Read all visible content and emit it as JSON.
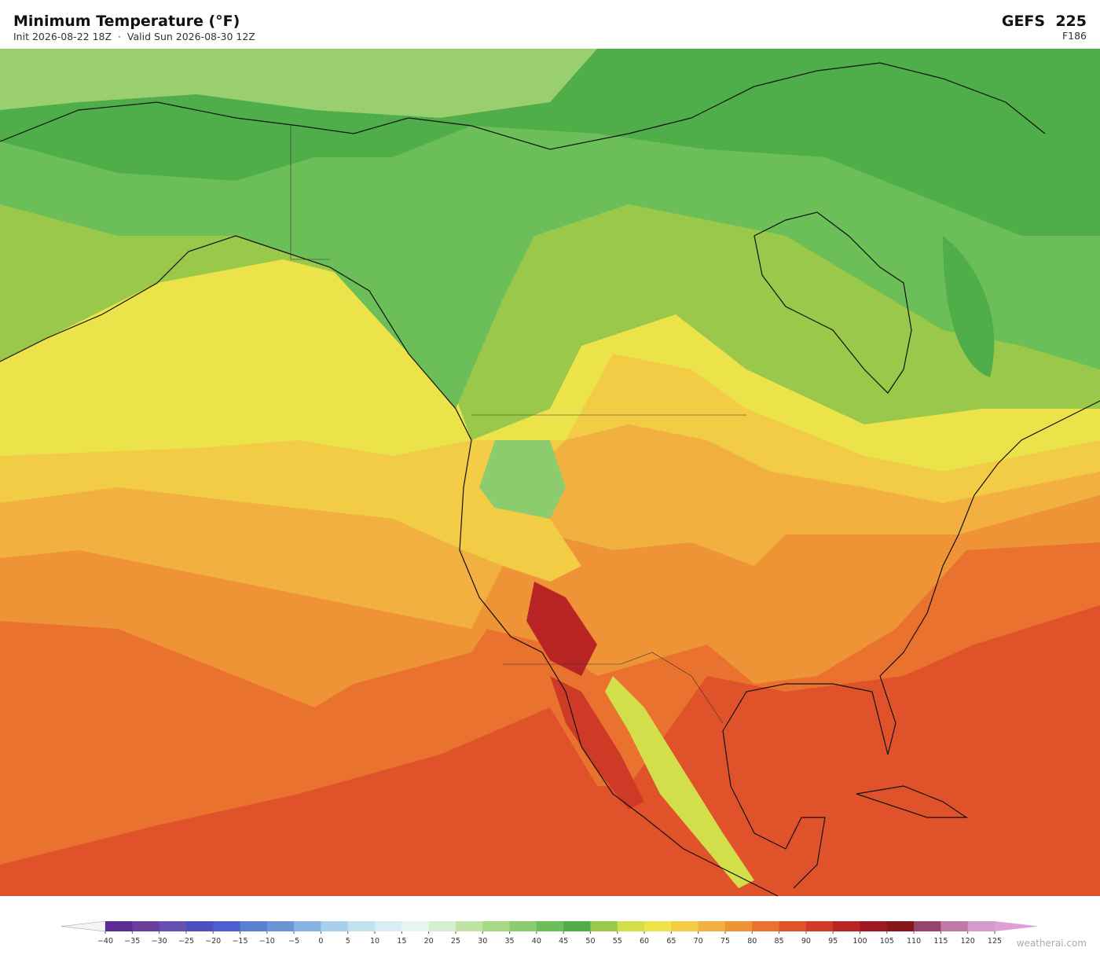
{
  "header": {
    "title": "Minimum Temperature  (°F)",
    "subtitle": "Init 2026-08-22 18Z  ·  Valid Sun 2026-08-30 12Z",
    "model": "GEFS  225",
    "forecast_hour": "F186"
  },
  "colorbar": {
    "ticks": [
      {
        "value": -40,
        "label": "−40"
      },
      {
        "value": -35,
        "label": "−35"
      },
      {
        "value": -30,
        "label": "−30"
      },
      {
        "value": -25,
        "label": "−25"
      },
      {
        "value": -20,
        "label": "−20"
      },
      {
        "value": -15,
        "label": "−15"
      },
      {
        "value": -10,
        "label": "−10"
      },
      {
        "value": -5,
        "label": "−5"
      },
      0,
      5,
      10,
      15,
      20,
      25,
      30,
      35,
      40,
      45,
      50,
      55,
      60,
      65,
      70,
      75,
      80,
      85,
      90,
      95,
      100,
      105,
      110,
      115,
      120,
      125
    ],
    "colors": [
      "#5a2d91",
      "#6a3d9a",
      "#6650b0",
      "#4b4fc0",
      "#4b5fcf",
      "#5b7fd0",
      "#6b93d6",
      "#87b3e0",
      "#a8d0ea",
      "#c3e2f0",
      "#d9eef3",
      "#e6f5ee",
      "#d8efcf",
      "#bfe3a4",
      "#a6d985",
      "#8dcc6e",
      "#6cbf58",
      "#4fae4a",
      "#99c84a",
      "#d2de4a",
      "#ece34a",
      "#f2cc45",
      "#f1b040",
      "#ee9436",
      "#e9722f",
      "#e0522a",
      "#cf3a26",
      "#b82424",
      "#9c1a1f",
      "#85161c",
      "#98436b",
      "#c07aa8",
      "#d49ccb"
    ],
    "extend_colors": [
      "#f4f4f4",
      "#dca0d4"
    ]
  },
  "watermark": "weatherai.com"
}
